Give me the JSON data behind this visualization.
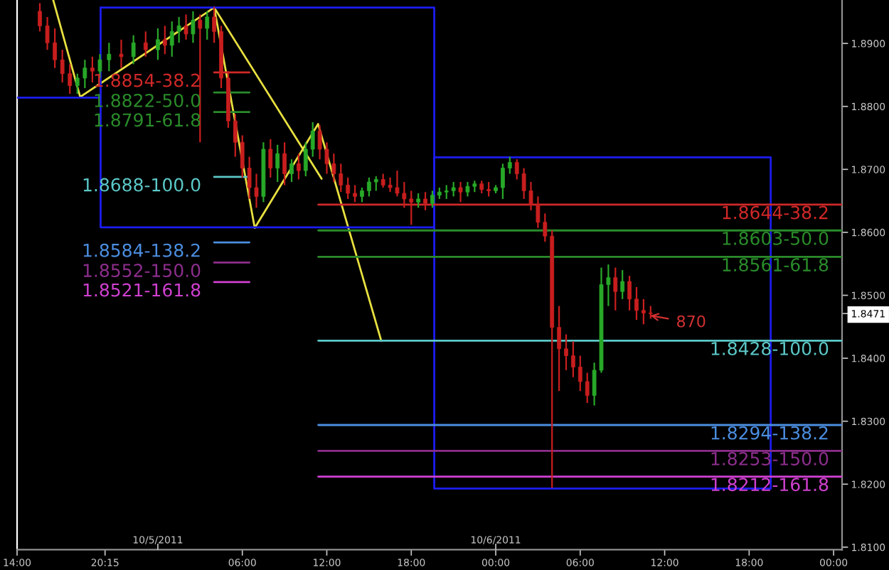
{
  "chart_data": {
    "type": "candlestick",
    "xlim": [
      "2011-10-04T14:00",
      "2011-10-07T00:36"
    ],
    "xticks": [
      {
        "value": "2011-10-04T14:00",
        "label": "14:00"
      },
      {
        "value": "2011-10-04T20:15",
        "label": "20:15"
      },
      {
        "value": "2011-10-05T06:00",
        "label": "06:00"
      },
      {
        "value": "2011-10-05T12:00",
        "label": "12:00"
      },
      {
        "value": "2011-10-05T18:00",
        "label": "18:00"
      },
      {
        "value": "2011-10-06T00:00",
        "label": "00:00"
      },
      {
        "value": "2011-10-06T06:00",
        "label": "06:00"
      },
      {
        "value": "2011-10-06T12:00",
        "label": "12:00"
      },
      {
        "value": "2011-10-06T18:00",
        "label": "18:00"
      },
      {
        "value": "2011-10-07T00:00",
        "label": "00:00"
      }
    ],
    "x2lim": [
      "2011-10-04T14:00",
      "2011-10-07T00:36"
    ],
    "x2ticks": [
      {
        "value": "2011-10-05T00:00",
        "label": "10/5/2011"
      },
      {
        "value": "2011-10-06T00:00",
        "label": "10/6/2011"
      }
    ],
    "ylim": [
      1.8096,
      1.8969
    ],
    "yticks": [
      {
        "value": 1.81,
        "label": "1.8100"
      },
      {
        "value": 1.82,
        "label": "1.8200"
      },
      {
        "value": 1.83,
        "label": "1.8300"
      },
      {
        "value": 1.84,
        "label": "1.8400"
      },
      {
        "value": 1.8471,
        "label": "1.8471"
      },
      {
        "value": 1.85,
        "label": "1.8500"
      },
      {
        "value": 1.86,
        "label": "1.8600"
      },
      {
        "value": 1.87,
        "label": "1.8700"
      },
      {
        "value": 1.88,
        "label": "1.8800"
      },
      {
        "value": 1.89,
        "label": "1.8900"
      }
    ],
    "x": [
      "2011-10-04T15:37",
      "2011-10-04T16:09",
      "2011-10-04T16:41",
      "2011-10-04T17:13",
      "2011-10-04T17:45",
      "2011-10-04T18:17",
      "2011-10-04T18:49",
      "2011-10-04T19:21",
      "2011-10-04T19:53",
      "2011-10-04T20:32",
      "2011-10-04T21:24",
      "2011-10-04T22:16",
      "2011-10-04T23:08",
      "2011-10-05T00:00",
      "2011-10-05T00:30",
      "2011-10-05T01:00",
      "2011-10-05T01:30",
      "2011-10-05T02:00",
      "2011-10-05T02:30",
      "2011-10-05T03:00",
      "2011-10-05T03:30",
      "2011-10-05T04:00",
      "2011-10-05T04:30",
      "2011-10-05T05:00",
      "2011-10-05T05:30",
      "2011-10-05T06:00",
      "2011-10-05T06:30",
      "2011-10-05T07:00",
      "2011-10-05T07:30",
      "2011-10-05T08:00",
      "2011-10-05T08:30",
      "2011-10-05T09:00",
      "2011-10-05T09:30",
      "2011-10-05T10:00",
      "2011-10-05T10:30",
      "2011-10-05T11:00",
      "2011-10-05T11:30",
      "2011-10-05T12:00",
      "2011-10-05T12:30",
      "2011-10-05T13:00",
      "2011-10-05T13:30",
      "2011-10-05T14:00",
      "2011-10-05T14:30",
      "2011-10-05T15:00",
      "2011-10-05T15:30",
      "2011-10-05T16:00",
      "2011-10-05T16:30",
      "2011-10-05T17:00",
      "2011-10-05T17:30",
      "2011-10-05T18:00",
      "2011-10-05T18:30",
      "2011-10-05T19:00",
      "2011-10-05T19:30",
      "2011-10-05T20:00",
      "2011-10-05T20:30",
      "2011-10-05T21:00",
      "2011-10-05T21:30",
      "2011-10-05T22:00",
      "2011-10-05T22:30",
      "2011-10-05T23:00",
      "2011-10-05T23:30",
      "2011-10-06T00:00",
      "2011-10-06T00:30",
      "2011-10-06T01:00",
      "2011-10-06T01:30",
      "2011-10-06T02:00",
      "2011-10-06T02:30",
      "2011-10-06T03:00",
      "2011-10-06T03:30",
      "2011-10-06T04:00",
      "2011-10-06T04:30",
      "2011-10-06T05:00",
      "2011-10-06T05:30",
      "2011-10-06T06:00",
      "2011-10-06T06:30",
      "2011-10-06T07:00",
      "2011-10-06T07:30",
      "2011-10-06T08:00",
      "2011-10-06T08:30",
      "2011-10-06T09:00",
      "2011-10-06T09:30",
      "2011-10-06T10:00",
      "2011-10-06T10:30",
      "2011-10-06T11:00"
    ],
    "ohlc": [
      [
        1.8951,
        1.8964,
        1.8919,
        1.8928
      ],
      [
        1.8928,
        1.8942,
        1.889,
        1.8901
      ],
      [
        1.8901,
        1.8924,
        1.8861,
        1.8874
      ],
      [
        1.8874,
        1.889,
        1.8838,
        1.8852
      ],
      [
        1.8852,
        1.8867,
        1.882,
        1.8833
      ],
      [
        1.8833,
        1.8852,
        1.882,
        1.8845
      ],
      [
        1.8845,
        1.8874,
        1.8829,
        1.8861
      ],
      [
        1.8861,
        1.8879,
        1.8838,
        1.8856
      ],
      [
        1.8856,
        1.8883,
        1.8845,
        1.8874
      ],
      [
        1.8874,
        1.8901,
        1.8856,
        1.8883
      ],
      [
        1.8883,
        1.8906,
        1.8861,
        1.8879
      ],
      [
        1.8879,
        1.8913,
        1.8867,
        1.8901
      ],
      [
        1.8901,
        1.8919,
        1.8879,
        1.889
      ],
      [
        1.889,
        1.8924,
        1.8874,
        1.8906
      ],
      [
        1.8906,
        1.8928,
        1.8883,
        1.8897
      ],
      [
        1.8897,
        1.8935,
        1.8879,
        1.8919
      ],
      [
        1.8919,
        1.8942,
        1.8901,
        1.8928
      ],
      [
        1.8928,
        1.8946,
        1.8906,
        1.8915
      ],
      [
        1.8915,
        1.8951,
        1.8901,
        1.8937
      ],
      [
        1.8937,
        1.8946,
        1.8743,
        1.8924
      ],
      [
        1.8924,
        1.8951,
        1.8906,
        1.8942
      ],
      [
        1.8942,
        1.8958,
        1.8901,
        1.8919
      ],
      [
        1.8919,
        1.8928,
        1.8829,
        1.8845
      ],
      [
        1.8845,
        1.8856,
        1.8766,
        1.8777
      ],
      [
        1.8777,
        1.8788,
        1.872,
        1.8743
      ],
      [
        1.8743,
        1.8754,
        1.8687,
        1.8702
      ],
      [
        1.8702,
        1.872,
        1.8653,
        1.8671
      ],
      [
        1.8671,
        1.8693,
        1.8639,
        1.8657
      ],
      [
        1.8657,
        1.8743,
        1.8648,
        1.8732
      ],
      [
        1.8732,
        1.8748,
        1.8687,
        1.8702
      ],
      [
        1.8702,
        1.8739,
        1.868,
        1.8725
      ],
      [
        1.8725,
        1.8743,
        1.8675,
        1.8693
      ],
      [
        1.8693,
        1.8716,
        1.868,
        1.8709
      ],
      [
        1.8709,
        1.8725,
        1.8684,
        1.8698
      ],
      [
        1.8698,
        1.8743,
        1.8689,
        1.8732
      ],
      [
        1.8732,
        1.8775,
        1.872,
        1.8761
      ],
      [
        1.8761,
        1.877,
        1.8716,
        1.8732
      ],
      [
        1.8732,
        1.8743,
        1.8693,
        1.8709
      ],
      [
        1.8709,
        1.8725,
        1.868,
        1.8693
      ],
      [
        1.8693,
        1.8709,
        1.8664,
        1.8675
      ],
      [
        1.8675,
        1.8687,
        1.8653,
        1.8662
      ],
      [
        1.8662,
        1.8675,
        1.8648,
        1.8657
      ],
      [
        1.8657,
        1.8671,
        1.8648,
        1.8666
      ],
      [
        1.8666,
        1.8687,
        1.8657,
        1.868
      ],
      [
        1.868,
        1.8689,
        1.8666,
        1.8684
      ],
      [
        1.8684,
        1.8693,
        1.8671,
        1.8675
      ],
      [
        1.8675,
        1.8687,
        1.8664,
        1.8671
      ],
      [
        1.8671,
        1.8698,
        1.8657,
        1.8662
      ],
      [
        1.8662,
        1.868,
        1.8639,
        1.8653
      ],
      [
        1.8653,
        1.8666,
        1.8612,
        1.8648
      ],
      [
        1.8648,
        1.8662,
        1.8639,
        1.8653
      ],
      [
        1.8653,
        1.8664,
        1.8635,
        1.8646
      ],
      [
        1.8646,
        1.8666,
        1.8639,
        1.8659
      ],
      [
        1.8659,
        1.8671,
        1.8653,
        1.8664
      ],
      [
        1.8664,
        1.8675,
        1.8653,
        1.8666
      ],
      [
        1.8666,
        1.868,
        1.8657,
        1.8671
      ],
      [
        1.8671,
        1.868,
        1.8648,
        1.8664
      ],
      [
        1.8664,
        1.868,
        1.8657,
        1.8673
      ],
      [
        1.8673,
        1.8682,
        1.8664,
        1.8677
      ],
      [
        1.8677,
        1.8682,
        1.8662,
        1.8668
      ],
      [
        1.8668,
        1.868,
        1.8657,
        1.8666
      ],
      [
        1.8666,
        1.8675,
        1.8662,
        1.8671
      ],
      [
        1.8671,
        1.8709,
        1.8653,
        1.8702
      ],
      [
        1.8702,
        1.872,
        1.8693,
        1.8711
      ],
      [
        1.8711,
        1.8716,
        1.8684,
        1.8693
      ],
      [
        1.8693,
        1.8702,
        1.8653,
        1.8666
      ],
      [
        1.8666,
        1.868,
        1.8635,
        1.8644
      ],
      [
        1.8644,
        1.8657,
        1.8607,
        1.8616
      ],
      [
        1.8616,
        1.863,
        1.8585,
        1.8594
      ],
      [
        1.8594,
        1.8603,
        1.8194,
        1.8449
      ],
      [
        1.8449,
        1.8483,
        1.8348,
        1.8415
      ],
      [
        1.8415,
        1.8438,
        1.8381,
        1.8404
      ],
      [
        1.8404,
        1.8427,
        1.837,
        1.8386
      ],
      [
        1.8386,
        1.8404,
        1.8348,
        1.8363
      ],
      [
        1.8363,
        1.8377,
        1.8329,
        1.8341
      ],
      [
        1.8341,
        1.8393,
        1.8325,
        1.8381
      ],
      [
        1.8381,
        1.8544,
        1.8377,
        1.8517
      ],
      [
        1.8517,
        1.8549,
        1.8483,
        1.8528
      ],
      [
        1.8528,
        1.8544,
        1.8476,
        1.8506
      ],
      [
        1.8506,
        1.854,
        1.8494,
        1.8522
      ],
      [
        1.8522,
        1.8531,
        1.8476,
        1.8494
      ],
      [
        1.8494,
        1.8513,
        1.8461,
        1.8476
      ],
      [
        1.8476,
        1.8494,
        1.8454,
        1.8472
      ],
      [
        1.8472,
        1.8483,
        1.8463,
        1.8471
      ]
    ],
    "colors": [
      "#c81e1e",
      "#c81e1e",
      "#c81e1e",
      "#c81e1e",
      "#c81e1e",
      "#28a828",
      "#28a828",
      "#c81e1e",
      "#28a828",
      "#28a828",
      "#c81e1e",
      "#28a828",
      "#c81e1e",
      "#28a828",
      "#c81e1e",
      "#28a828",
      "#28a828",
      "#c81e1e",
      "#28a828",
      "#c81e1e",
      "#28a828",
      "#c81e1e",
      "#c81e1e",
      "#c81e1e",
      "#c81e1e",
      "#c81e1e",
      "#c81e1e",
      "#c81e1e",
      "#28a828",
      "#c81e1e",
      "#28a828",
      "#c81e1e",
      "#28a828",
      "#c81e1e",
      "#28a828",
      "#28a828",
      "#c81e1e",
      "#c81e1e",
      "#c81e1e",
      "#c81e1e",
      "#c81e1e",
      "#c81e1e",
      "#28a828",
      "#28a828",
      "#28a828",
      "#c81e1e",
      "#c81e1e",
      "#c81e1e",
      "#c81e1e",
      "#c81e1e",
      "#28a828",
      "#c81e1e",
      "#28a828",
      "#28a828",
      "#28a828",
      "#28a828",
      "#c81e1e",
      "#28a828",
      "#28a828",
      "#c81e1e",
      "#c81e1e",
      "#28a828",
      "#28a828",
      "#28a828",
      "#c81e1e",
      "#c81e1e",
      "#c81e1e",
      "#c81e1e",
      "#c81e1e",
      "#c81e1e",
      "#c81e1e",
      "#c81e1e",
      "#c81e1e",
      "#c81e1e",
      "#c81e1e",
      "#28a828",
      "#28a828",
      "#28a828",
      "#c81e1e",
      "#28a828",
      "#c81e1e",
      "#c81e1e",
      "#c81e1e",
      "#c81e1e"
    ],
    "series": [
      {
        "type": "line",
        "color": "#e8e040",
        "x": [
          "2011-10-04T16:34",
          "2011-10-04T18:29",
          "2011-10-05T04:00",
          "2011-10-05T06:53",
          "2011-10-05T11:23",
          "2011-10-05T15:52"
        ],
        "values": [
          1.8969,
          1.8815,
          1.8957,
          1.8607,
          1.8772,
          1.8428
        ]
      },
      {
        "type": "line",
        "color": "#e8e040",
        "x": [
          "2011-10-05T04:00",
          "2011-10-05T11:38"
        ],
        "values": [
          1.8957,
          1.8685
        ]
      },
      {
        "type": "line",
        "color": "#1c1cf0",
        "x": [
          "2011-10-04T14:00",
          "2011-10-04T19:56"
        ],
        "values": [
          1.8814,
          1.8814
        ]
      },
      {
        "type": "line",
        "color": "#1c1cf0",
        "x": [
          "2011-10-04T19:56",
          "2011-10-05T19:38",
          "2011-10-05T19:38"
        ],
        "values": [
          1.8957,
          1.8957,
          1.8608
        ]
      },
      {
        "type": "line",
        "color": "#1c1cf0",
        "x": [
          "2011-10-05T19:38",
          "2011-10-04T19:56",
          "2011-10-04T19:56"
        ],
        "values": [
          1.8608,
          1.8608,
          1.8957
        ]
      },
      {
        "type": "line",
        "color": "#1c1cf0",
        "x": [
          "2011-10-05T19:38",
          "2011-10-06T19:32",
          "2011-10-06T19:32"
        ],
        "values": [
          1.8719,
          1.8719,
          1.8193
        ]
      },
      {
        "type": "line",
        "color": "#1c1cf0",
        "x": [
          "2011-10-06T19:32",
          "2011-10-05T19:38",
          "2011-10-05T19:38"
        ],
        "values": [
          1.8193,
          1.8193,
          1.8719
        ]
      },
      {
        "type": "line",
        "name": "1.8854-38.2",
        "color": "#d02828",
        "x": [
          "2011-10-05T04:00",
          "2011-10-05T06:30"
        ],
        "values": [
          1.8854,
          1.8854
        ]
      },
      {
        "type": "line",
        "name": "1.8822-50.0",
        "color": "#2a8c2a",
        "x": [
          "2011-10-05T04:00",
          "2011-10-05T06:30"
        ],
        "values": [
          1.8822,
          1.8822
        ]
      },
      {
        "type": "line",
        "name": "1.8791-61.8",
        "color": "#2a8c2a",
        "x": [
          "2011-10-05T04:00",
          "2011-10-05T06:30"
        ],
        "values": [
          1.8791,
          1.8791
        ]
      },
      {
        "type": "line",
        "name": "1.8688-100.0",
        "color": "#5cc8c8",
        "x": [
          "2011-10-05T04:00",
          "2011-10-05T06:30"
        ],
        "values": [
          1.8688,
          1.8688
        ]
      },
      {
        "type": "line",
        "name": "1.8584-138.2",
        "color": "#4c8ee0",
        "x": [
          "2011-10-05T04:00",
          "2011-10-05T06:30"
        ],
        "values": [
          1.8584,
          1.8584
        ]
      },
      {
        "type": "line",
        "name": "1.8552-150.0",
        "color": "#8c2e8c",
        "x": [
          "2011-10-05T04:00",
          "2011-10-05T06:30"
        ],
        "values": [
          1.8552,
          1.8552
        ]
      },
      {
        "type": "line",
        "name": "1.8521-161.8",
        "color": "#d040d0",
        "x": [
          "2011-10-05T04:00",
          "2011-10-05T06:30"
        ],
        "values": [
          1.8521,
          1.8521
        ]
      },
      {
        "type": "line",
        "name": "1.8644-38.2",
        "color": "#d02828",
        "x": [
          "2011-10-05T11:24",
          "2011-10-07T00:36"
        ],
        "values": [
          1.8644,
          1.8644
        ]
      },
      {
        "type": "line",
        "name": "1.8603-50.0",
        "color": "#2a8c2a",
        "x": [
          "2011-10-05T11:24",
          "2011-10-07T00:36"
        ],
        "values": [
          1.8603,
          1.8603
        ]
      },
      {
        "type": "line",
        "name": "1.8561-61.8",
        "color": "#2a8c2a",
        "x": [
          "2011-10-05T11:24",
          "2011-10-07T00:36"
        ],
        "values": [
          1.8561,
          1.8561
        ]
      },
      {
        "type": "line",
        "name": "1.8428-100.0",
        "color": "#5cc8c8",
        "x": [
          "2011-10-05T11:24",
          "2011-10-07T00:36"
        ],
        "values": [
          1.8428,
          1.8428
        ]
      },
      {
        "type": "line",
        "name": "1.8294-138.2",
        "color": "#4c8ee0",
        "x": [
          "2011-10-05T11:24",
          "2011-10-07T00:36"
        ],
        "values": [
          1.8294,
          1.8294
        ]
      },
      {
        "type": "line",
        "name": "1.8253-150.0",
        "color": "#8c2e8c",
        "x": [
          "2011-10-05T11:24",
          "2011-10-07T00:36"
        ],
        "values": [
          1.8253,
          1.8253
        ]
      },
      {
        "type": "line",
        "name": "1.8212-161.8",
        "color": "#d040d0",
        "x": [
          "2011-10-05T11:24",
          "2011-10-07T00:36"
        ],
        "values": [
          1.8212,
          1.8212
        ]
      }
    ],
    "annotations": [
      {
        "text": "870",
        "x": "2011-10-06T10:42",
        "y": 1.8469
      }
    ]
  }
}
